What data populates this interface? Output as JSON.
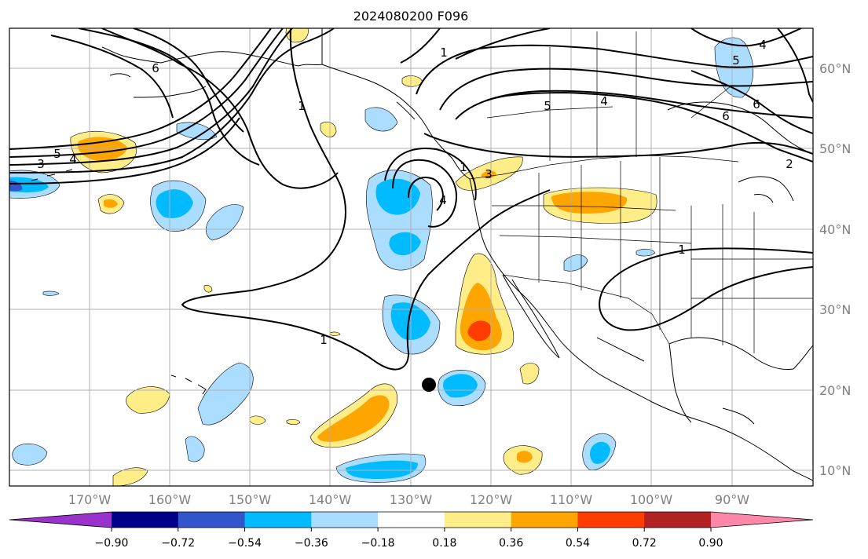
{
  "title": "2024080200 F096",
  "map": {
    "lon_labels": [
      "170°W",
      "160°W",
      "150°W",
      "140°W",
      "130°W",
      "120°W",
      "110°W",
      "100°W",
      "90°W"
    ],
    "lat_labels": [
      "10°N",
      "20°N",
      "30°N",
      "40°N",
      "50°N",
      "60°N"
    ],
    "contour_labels": [
      "6",
      "5",
      "4",
      "3",
      "1",
      "1",
      "1",
      "1",
      "5",
      "4",
      "6",
      "6",
      "5",
      "4",
      "4",
      "3",
      "2",
      "1"
    ],
    "grid_color": "#b0b0b0",
    "coast_color": "#000000",
    "marker": "black-dot"
  },
  "colorbar": {
    "colors": [
      "#9933cc",
      "#000088",
      "#3355cc",
      "#00bbff",
      "#aaddff",
      "#ffffff",
      "#ffee88",
      "#ffa500",
      "#ff3d00",
      "#b22222",
      "#ff88aa"
    ],
    "tick_labels": [
      "−0.90",
      "−0.72",
      "−0.54",
      "−0.36",
      "−0.18",
      "0.18",
      "0.36",
      "0.54",
      "0.72",
      "0.90"
    ]
  }
}
